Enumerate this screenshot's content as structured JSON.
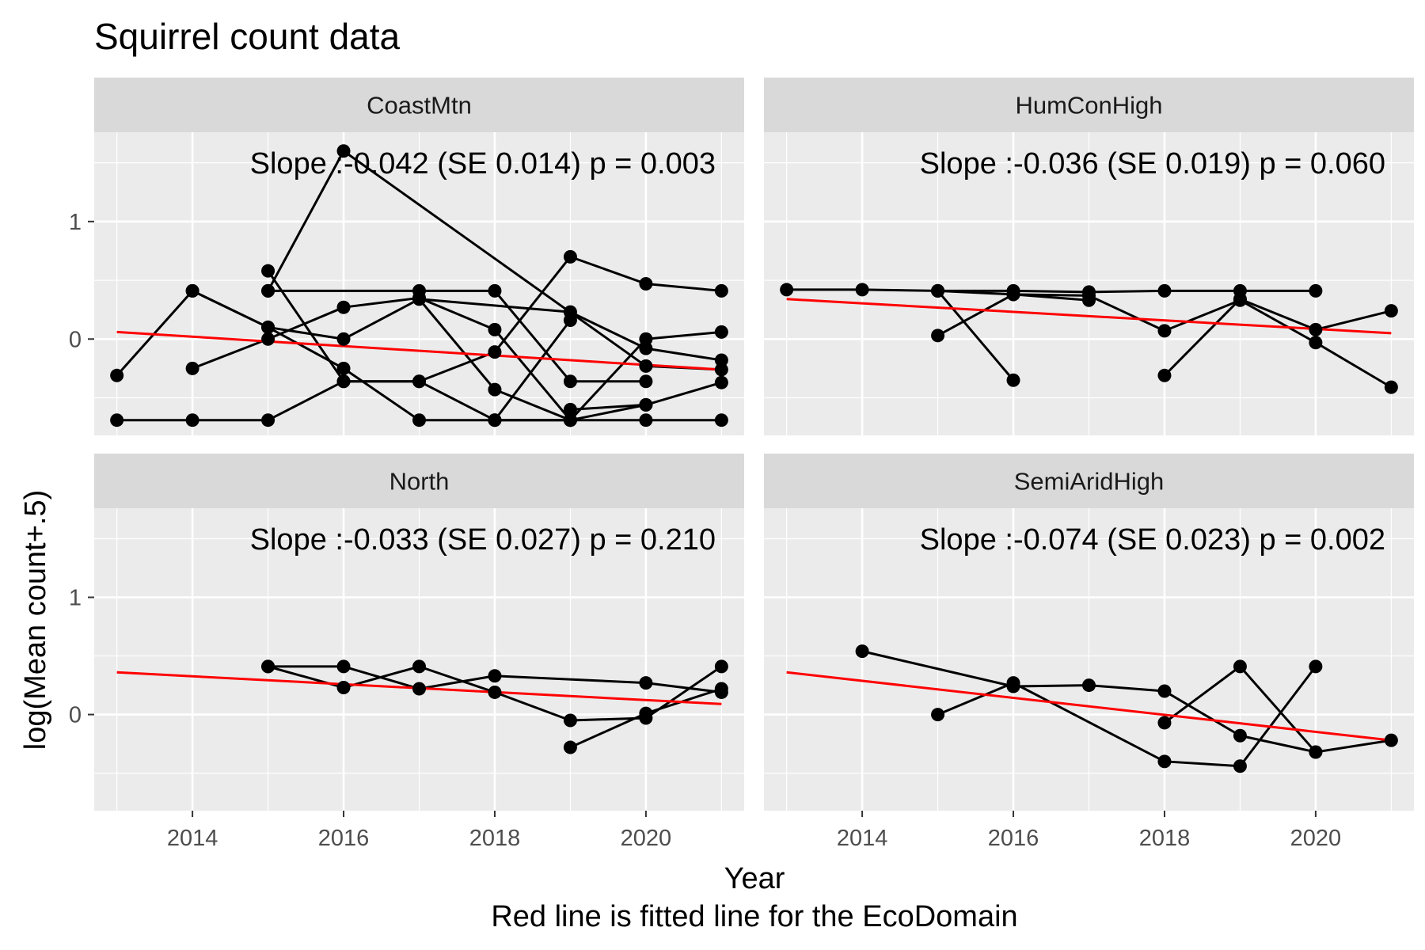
{
  "chart_data": {
    "type": "line",
    "title": "Squirrel count data",
    "xlabel": "Year",
    "ylabel": "log(Mean count+.5)",
    "caption": "Red line is fitted line for the EcoDomain",
    "xlim": [
      2012.7,
      2021.3
    ],
    "ylim": [
      -0.82,
      1.76
    ],
    "x_ticks": [
      2014,
      2016,
      2018,
      2020
    ],
    "y_ticks": [
      0,
      1
    ],
    "grid": true,
    "fit_color": "#ff0000",
    "point_color": "#000000",
    "panel_background": "#ebebeb",
    "strip_background": "#d9d9d9",
    "panels": [
      {
        "name": "CoastMtn",
        "annotation": "Slope :-0.042 (SE 0.014) p = 0.003",
        "fit": {
          "x": [
            2013,
            2021
          ],
          "y": [
            0.06,
            -0.26
          ]
        },
        "series": [
          {
            "x": [
              2013,
              2014,
              2015,
              2016,
              2017,
              2018,
              2019,
              2020,
              2021
            ],
            "y": [
              -0.69,
              -0.69,
              -0.69,
              -0.36,
              -0.36,
              -0.69,
              -0.69,
              -0.69,
              -0.69
            ]
          },
          {
            "x": [
              2013,
              2014,
              2015,
              2016,
              2017,
              2018,
              2019
            ],
            "y": [
              -0.31,
              0.41,
              0.1,
              -0.25,
              -0.69,
              -0.69,
              -0.69
            ]
          },
          {
            "x": [
              2014,
              2015,
              2016,
              2017,
              2018,
              2019,
              2020,
              2021
            ],
            "y": [
              -0.25,
              0.0,
              0.27,
              0.35,
              0.08,
              -0.69,
              0.0,
              0.06
            ]
          },
          {
            "x": [
              2014,
              2015,
              2016,
              2017,
              2018,
              2019,
              2020,
              2021
            ],
            "y": [
              0.41,
              0.1,
              0.0,
              0.34,
              -0.43,
              -0.69,
              -0.56,
              -0.37
            ]
          },
          {
            "x": [
              2015,
              2016,
              2020,
              2021
            ],
            "y": [
              0.41,
              1.6,
              -0.23,
              -0.26
            ]
          },
          {
            "x": [
              2015,
              2016,
              2017,
              2018,
              2019,
              2020,
              2021
            ],
            "y": [
              0.58,
              -0.36,
              -0.36,
              -0.11,
              0.7,
              0.47,
              0.41
            ]
          },
          {
            "x": [
              2015,
              2017,
              2018,
              2019,
              2020
            ],
            "y": [
              0.41,
              0.41,
              0.41,
              -0.36,
              -0.36
            ]
          },
          {
            "x": [
              2017,
              2019,
              2020,
              2021
            ],
            "y": [
              0.34,
              0.23,
              -0.08,
              -0.18
            ]
          },
          {
            "x": [
              2018,
              2019
            ],
            "y": [
              -0.69,
              0.16
            ]
          },
          {
            "x": [
              2019,
              2020
            ],
            "y": [
              -0.6,
              -0.56
            ]
          }
        ]
      },
      {
        "name": "HumConHigh",
        "annotation": "Slope :-0.036 (SE 0.019) p = 0.060",
        "fit": {
          "x": [
            2013,
            2021
          ],
          "y": [
            0.34,
            0.05
          ]
        },
        "series": [
          {
            "x": [
              2013,
              2014,
              2015,
              2016,
              2017,
              2018,
              2019,
              2020
            ],
            "y": [
              0.42,
              0.42,
              0.41,
              0.41,
              0.4,
              0.41,
              0.41,
              0.41
            ]
          },
          {
            "x": [
              2015,
              2016,
              2017,
              2018,
              2019,
              2020,
              2021
            ],
            "y": [
              0.41,
              0.38,
              0.37,
              0.07,
              0.33,
              -0.03,
              -0.41
            ]
          },
          {
            "x": [
              2015,
              2016
            ],
            "y": [
              0.41,
              -0.35
            ]
          },
          {
            "x": [
              2015,
              2016
            ],
            "y": [
              0.03,
              0.38
            ]
          },
          {
            "x": [
              2018,
              2019,
              2020,
              2021
            ],
            "y": [
              -0.31,
              0.34,
              0.08,
              0.24
            ]
          },
          {
            "x": [
              2016,
              2017
            ],
            "y": [
              0.38,
              0.33
            ]
          }
        ]
      },
      {
        "name": "North",
        "annotation": "Slope :-0.033 (SE 0.027) p = 0.210",
        "fit": {
          "x": [
            2013,
            2021
          ],
          "y": [
            0.36,
            0.09
          ]
        },
        "series": [
          {
            "x": [
              2015,
              2016,
              2017,
              2018,
              2019,
              2020,
              2021
            ],
            "y": [
              0.41,
              0.23,
              0.41,
              0.19,
              -0.05,
              -0.03,
              0.41
            ]
          },
          {
            "x": [
              2015,
              2016,
              2017,
              2018,
              2020,
              2021
            ],
            "y": [
              0.41,
              0.41,
              0.22,
              0.33,
              0.27,
              0.19
            ]
          },
          {
            "x": [
              2019,
              2020,
              2021
            ],
            "y": [
              -0.28,
              0.01,
              0.22
            ]
          }
        ]
      },
      {
        "name": "SemiAridHigh",
        "annotation": "Slope :-0.074 (SE 0.023) p = 0.002",
        "fit": {
          "x": [
            2013,
            2021
          ],
          "y": [
            0.36,
            -0.22
          ]
        },
        "series": [
          {
            "x": [
              2014,
              2016,
              2017,
              2018,
              2019,
              2020,
              2021
            ],
            "y": [
              0.54,
              0.24,
              0.25,
              0.2,
              -0.18,
              -0.32,
              -0.22
            ]
          },
          {
            "x": [
              2015,
              2016,
              2018,
              2019,
              2020
            ],
            "y": [
              0.0,
              0.27,
              -0.4,
              -0.44,
              0.41
            ]
          },
          {
            "x": [
              2018,
              2019,
              2020
            ],
            "y": [
              -0.07,
              0.41,
              -0.32
            ]
          }
        ]
      }
    ]
  }
}
